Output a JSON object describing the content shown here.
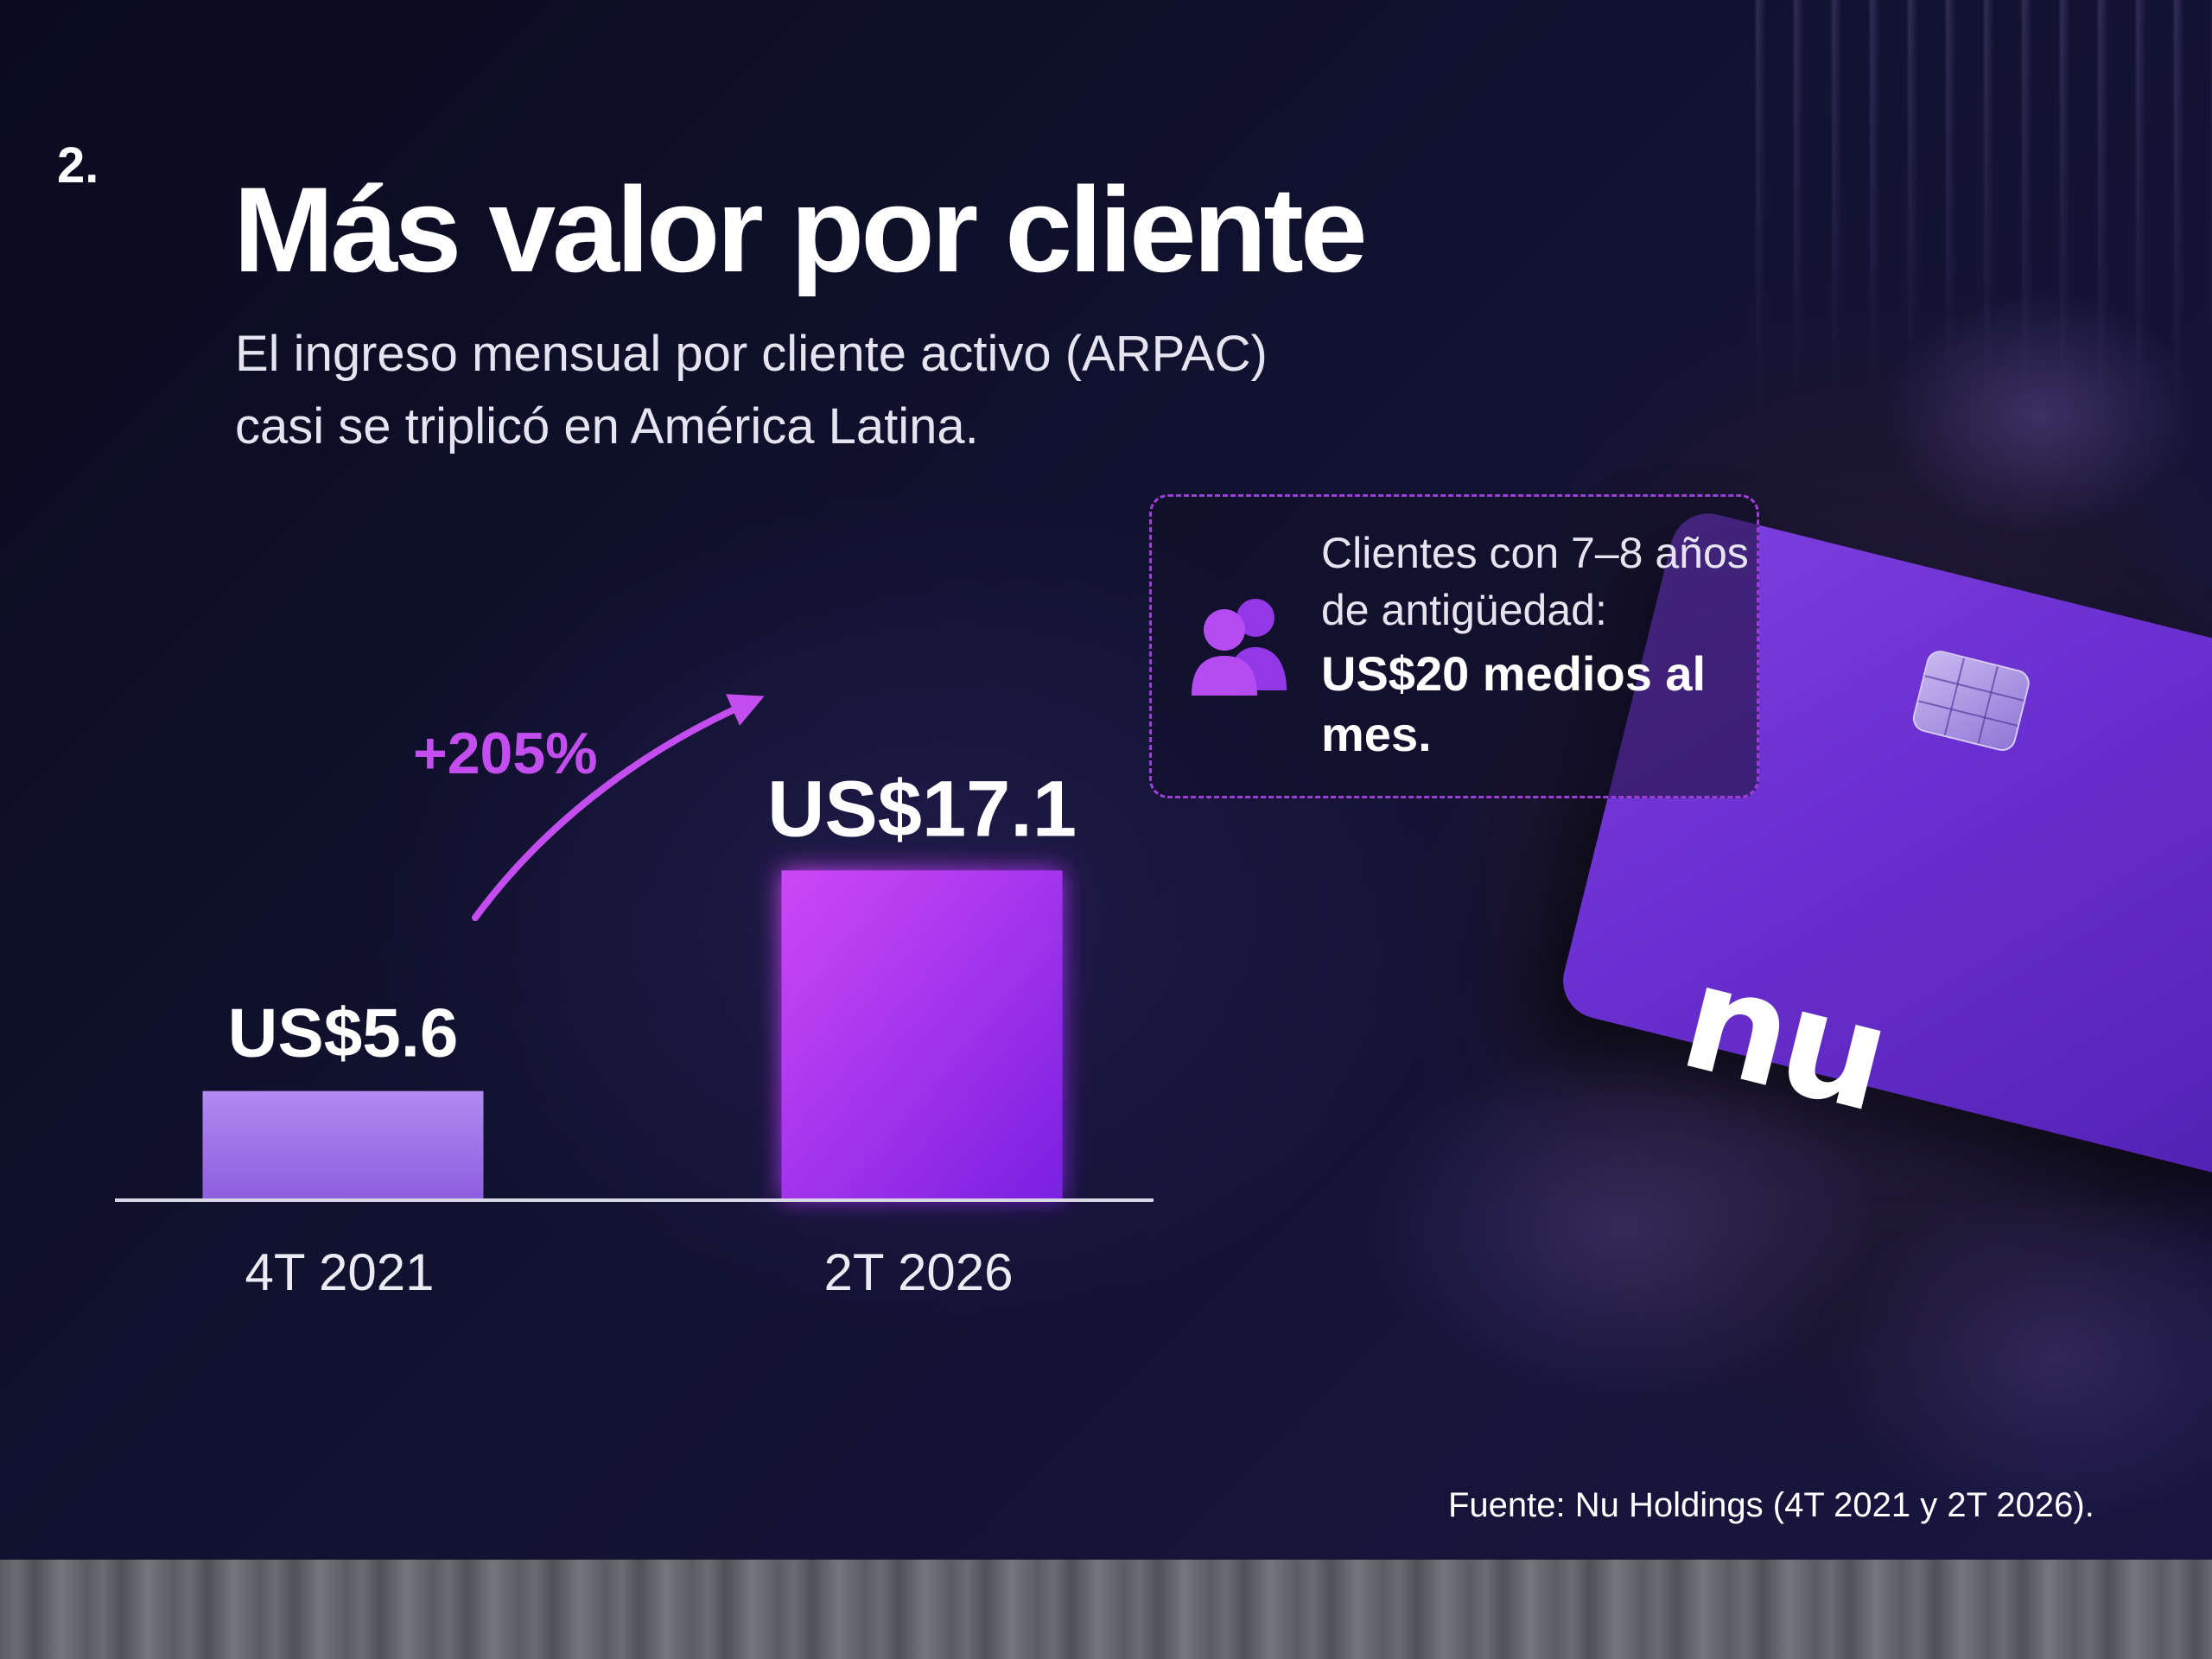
{
  "slide": {
    "number": "2.",
    "title": "Más valor por cliente",
    "subtitle_lines": [
      "El ingreso mensual por cliente activo (ARPAC)",
      "casi se triplicó en América Latina."
    ],
    "source": "Fuente: Nu Holdings (4T 2021 y 2T 2026)."
  },
  "chart_data": {
    "type": "bar",
    "categories": [
      "4T 2021",
      "2T 2026"
    ],
    "values": [
      5.6,
      17.1
    ],
    "value_labels": [
      "US$5.6",
      "US$17.1"
    ],
    "growth_annotation": "+205%",
    "colors": [
      "#a77ae8",
      "#b040f0"
    ],
    "accent": "#c44df0"
  },
  "callout": {
    "line1": "Clientes con 7–8 años",
    "line2": "de antigüedad:",
    "strong": "US$20 medios al mes.",
    "icon": "people-icon",
    "border_color": "#9b3fd8"
  },
  "card": {
    "logo": "nu",
    "color": "#7d3fe0"
  }
}
